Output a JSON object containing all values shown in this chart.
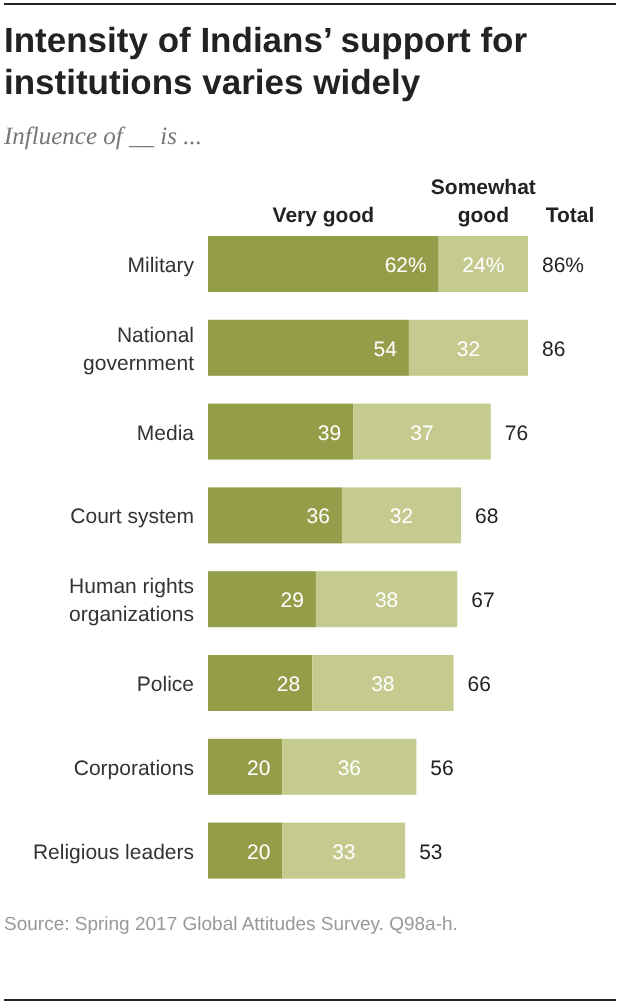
{
  "chart_data": {
    "type": "bar",
    "orientation": "horizontal",
    "stacked": true,
    "title": "Intensity of Indians’ support for institutions varies widely",
    "subtitle": "Influence of __ is ...",
    "categories": [
      "Military",
      "National government",
      "Media",
      "Court system",
      "Human rights organizations",
      "Police",
      "Corporations",
      "Religious leaders"
    ],
    "series": [
      {
        "name": "Very good",
        "color": "#949d48",
        "values": [
          62,
          54,
          39,
          36,
          29,
          28,
          20,
          20
        ],
        "value_labels": [
          "62%",
          "54",
          "39",
          "36",
          "29",
          "28",
          "20",
          "20"
        ]
      },
      {
        "name": "Somewhat good",
        "color": "#c5cb8f",
        "values": [
          24,
          32,
          37,
          32,
          38,
          38,
          36,
          33
        ],
        "value_labels": [
          "24%",
          "32",
          "37",
          "32",
          "38",
          "38",
          "36",
          "33"
        ]
      }
    ],
    "totals": [
      "86%",
      "86",
      "76",
      "68",
      "67",
      "66",
      "56",
      "53"
    ],
    "legend": "top",
    "annotations": [
      "Total",
      "Source: Spring 2017 Global Attitudes Survey. Q98a-h."
    ]
  }
}
